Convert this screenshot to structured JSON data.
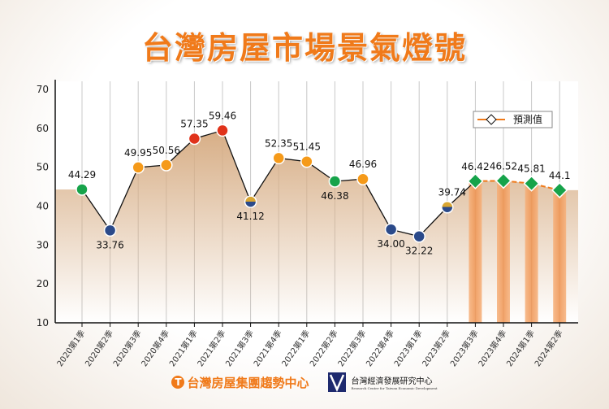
{
  "chart_data": {
    "type": "line",
    "title": "台灣房屋市場景氣燈號",
    "categories": [
      "2020第1季",
      "2020第2季",
      "2020第3季",
      "2020第4季",
      "2021第1季",
      "2021第2季",
      "2021第3季",
      "2021第4季",
      "2022第1季",
      "2022第2季",
      "2022第3季",
      "2022第4季",
      "2023第1季",
      "2023第2季",
      "2023第3季",
      "2023第4季",
      "2024第1季",
      "2024第2季"
    ],
    "values": [
      44.29,
      33.76,
      49.95,
      50.56,
      57.35,
      59.46,
      41.12,
      52.35,
      51.45,
      46.38,
      46.96,
      34.0,
      32.22,
      39.74,
      46.42,
      46.52,
      45.81,
      44.1
    ],
    "value_labels": [
      "44.29",
      "33.76",
      "49.95",
      "50.56",
      "57.35",
      "59.46",
      "41.12",
      "52.35",
      "51.45",
      "46.38",
      "46.96",
      "34.00",
      "32.22",
      "39.74",
      "46.42",
      "46.52",
      "45.81",
      "44.1"
    ],
    "marker_colors": [
      "green",
      "blue",
      "orange",
      "orange",
      "red",
      "red",
      "blue-yellow",
      "orange",
      "orange",
      "green",
      "orange",
      "blue",
      "blue",
      "blue-yellow",
      "green",
      "green",
      "green",
      "green"
    ],
    "forecast_start_index": 14,
    "legend": {
      "label": "預測值",
      "placement": "top-right"
    },
    "ylim": [
      10,
      70
    ],
    "yticks": [
      10,
      20,
      30,
      40,
      50,
      60,
      70
    ],
    "grid": "vertical",
    "colors": {
      "green": "#16a34a",
      "blue": "#2b4a8a",
      "orange": "#f59a1a",
      "red": "#e0321a",
      "blue-yellow": "#d9a632",
      "forecast": "#f07a1a",
      "area": "#d7ae86",
      "line": "#111111"
    }
  },
  "footer": {
    "brand1": "台灣房屋集團趨勢中心",
    "brand2": "台灣經濟發展研究中心",
    "brand2_sub": "Research Center for Taiwan Economic Development"
  }
}
